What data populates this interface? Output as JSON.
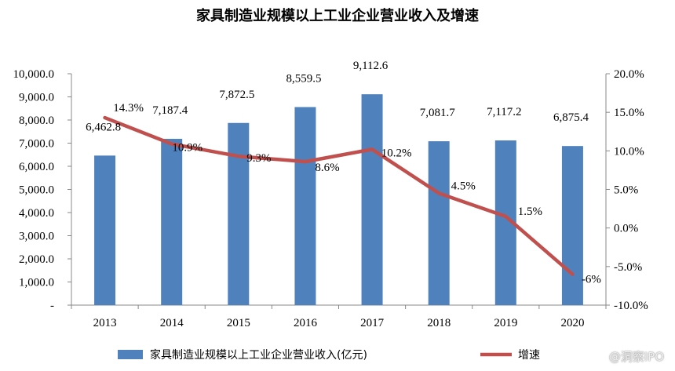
{
  "chart_data": {
    "type": "bar+line",
    "title": "家具制造业规模以上工业企业营业收入及增速",
    "categories": [
      "2013",
      "2014",
      "2015",
      "2016",
      "2017",
      "2018",
      "2019",
      "2020"
    ],
    "bar_series": {
      "name": "家具制造业规模以上工业企业营业收入(亿元)",
      "values": [
        6462.8,
        7187.4,
        7872.5,
        8559.5,
        9112.6,
        7081.7,
        7117.2,
        6875.4
      ],
      "labels": [
        "6,462.8",
        "7,187.4",
        "7,872.5",
        "8,559.5",
        "9,112.6",
        "7,081.7",
        "7,117.2",
        "6,875.4"
      ],
      "color": "#4F81BD"
    },
    "line_series": {
      "name": "增速",
      "values": [
        14.3,
        10.9,
        9.3,
        8.6,
        10.2,
        4.5,
        1.5,
        -6
      ],
      "labels": [
        "14.3%",
        "10.9%",
        "9.3%",
        "8.6%",
        "10.2%",
        "4.5%",
        "1.5%",
        "-6%"
      ],
      "color": "#C0504D"
    },
    "y_left": {
      "ylim": [
        0,
        10000
      ],
      "ticks": [
        0,
        1000,
        2000,
        3000,
        4000,
        5000,
        6000,
        7000,
        8000,
        9000,
        10000
      ],
      "tick_labels": [
        "-",
        "1,000.0",
        "2,000.0",
        "3,000.0",
        "4,000.0",
        "5,000.0",
        "6,000.0",
        "7,000.0",
        "8,000.0",
        "9,000.0",
        "10,000.0"
      ]
    },
    "y_right": {
      "ylim": [
        -10,
        20
      ],
      "ticks": [
        -10,
        -5,
        0,
        5,
        10,
        15,
        20
      ],
      "tick_labels": [
        "-10.0%",
        "-5.0%",
        "0.0%",
        "5.0%",
        "10.0%",
        "15.0%",
        "20.0%"
      ]
    },
    "grid": false,
    "legend_position": "bottom"
  },
  "watermark": "@洞察IPO"
}
